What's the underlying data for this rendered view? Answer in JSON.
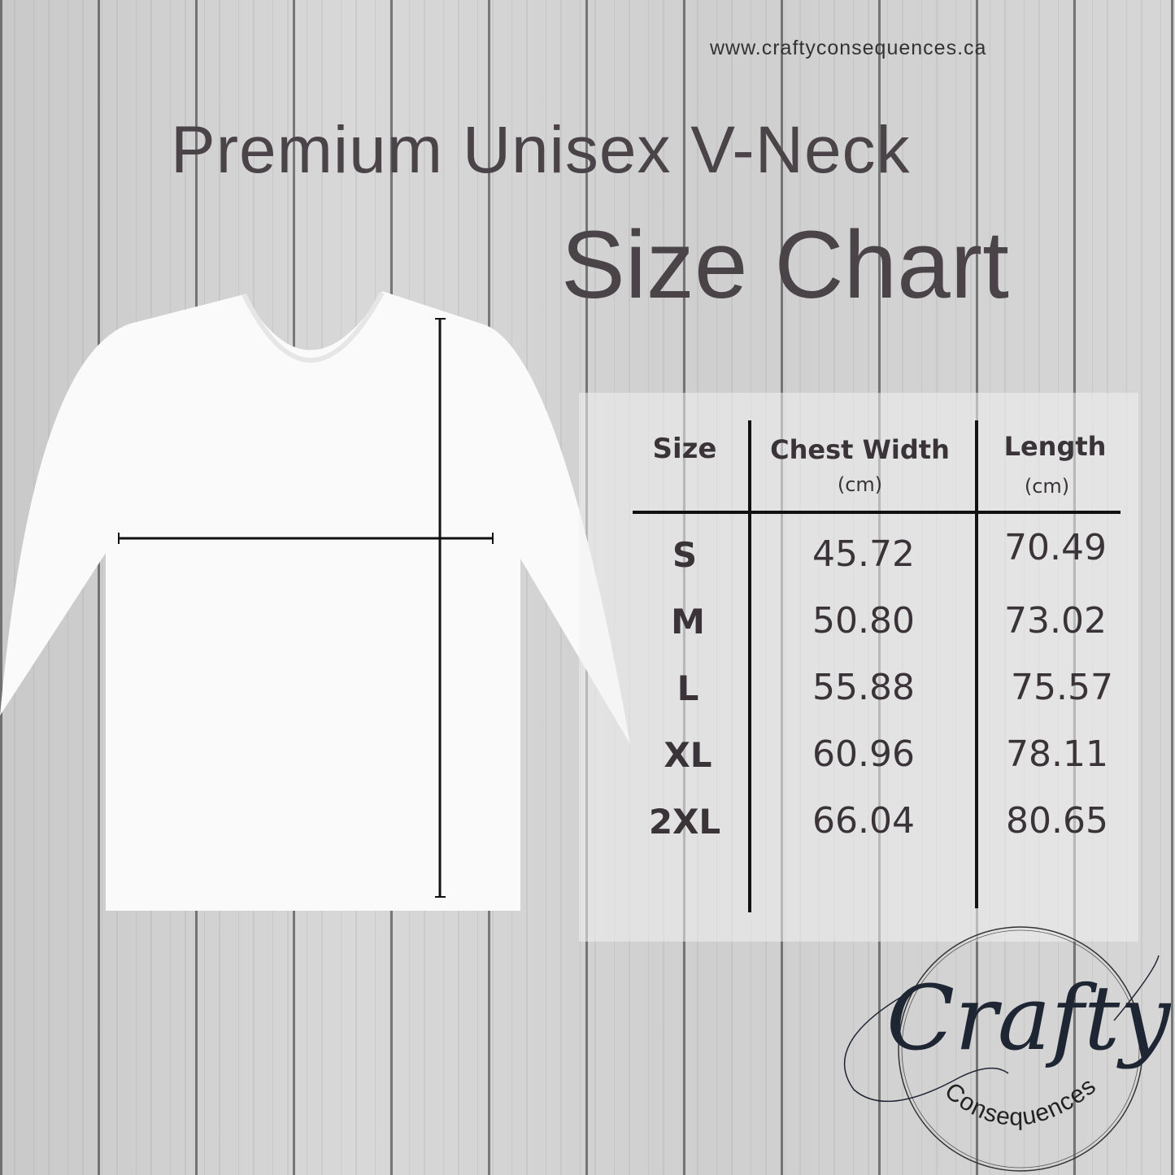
{
  "website": "www.craftyconsequences.ca",
  "title": {
    "line1": "Premium Unisex V-Neck",
    "line2": "Size Chart"
  },
  "table": {
    "headers": [
      {
        "label": "Size",
        "unit": ""
      },
      {
        "label": "Chest Width",
        "unit": "(cm)"
      },
      {
        "label": "Length",
        "unit": "(cm)"
      }
    ],
    "rows": [
      {
        "size": "S",
        "chest": "45.72",
        "length": "70.49"
      },
      {
        "size": "M",
        "chest": "50.80",
        "length": "73.02"
      },
      {
        "size": "L",
        "chest": "55.88",
        "length": "75.57"
      },
      {
        "size": "XL",
        "chest": "60.96",
        "length": "78.11"
      },
      {
        "size": "2XL",
        "chest": "66.04",
        "length": "80.65"
      }
    ]
  },
  "logo": {
    "main": "Crafty",
    "sub": "Consequences"
  },
  "colors": {
    "text": "#3a3338",
    "logo": "#1f2633",
    "shirt": "#ffffff"
  }
}
